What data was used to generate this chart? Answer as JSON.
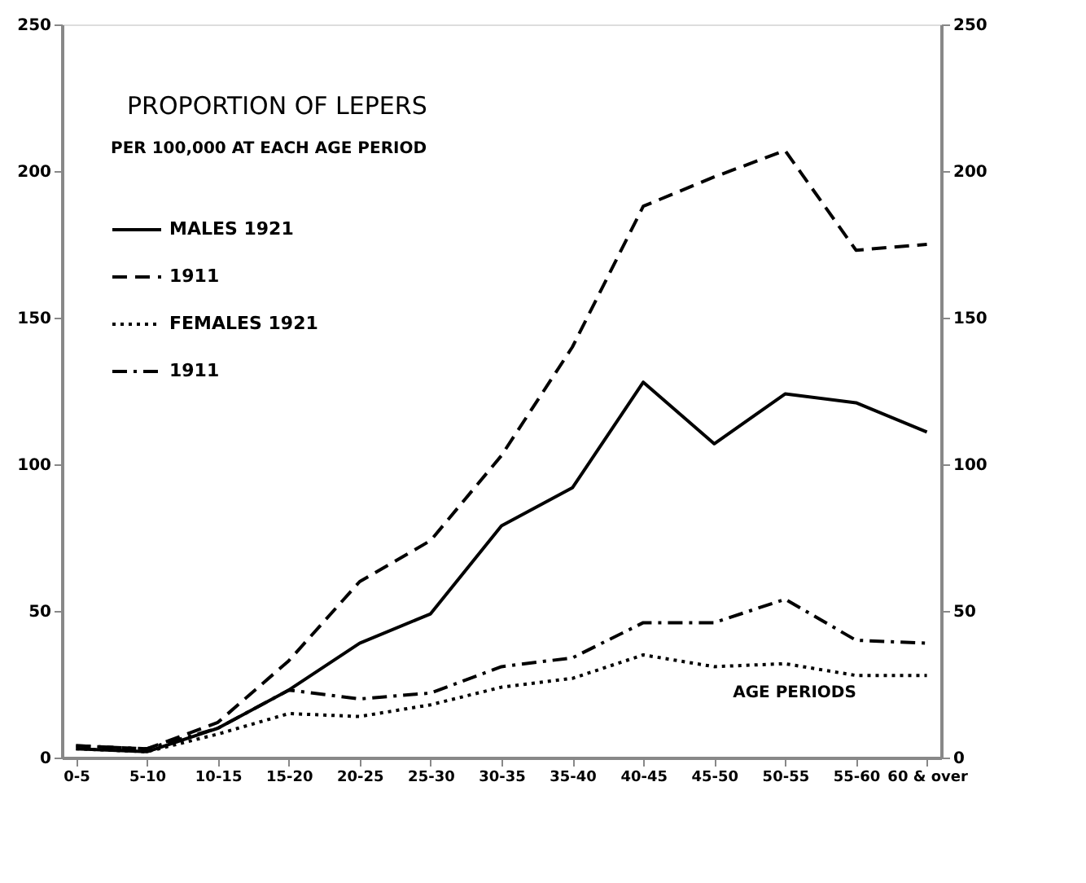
{
  "chart_data": {
    "type": "line",
    "title": "PROPORTION OF LEPERS",
    "subtitle": "PER 100,000 AT EACH AGE PERIOD",
    "categories": [
      "0-5",
      "5-10",
      "10-15",
      "15-20",
      "20-25",
      "25-30",
      "30-35",
      "35-40",
      "40-45",
      "45-50",
      "50-55",
      "55-60",
      "60 & over"
    ],
    "series": [
      {
        "name": "MALES 1921",
        "color": "#000000",
        "line_style": "solid",
        "values": [
          3,
          2,
          10,
          23,
          39,
          49,
          79,
          92,
          128,
          107,
          124,
          121,
          111
        ]
      },
      {
        "name": "1911",
        "color": "#000000",
        "line_style": "dashed",
        "values": [
          4,
          3,
          12,
          33,
          60,
          74,
          103,
          140,
          188,
          198,
          207,
          173,
          175
        ]
      },
      {
        "name": "FEMALES 1921",
        "color": "#000000",
        "line_style": "dotted",
        "values": [
          3,
          2,
          8,
          15,
          14,
          18,
          24,
          27,
          35,
          31,
          32,
          28,
          28
        ]
      },
      {
        "name": "1911",
        "color": "#000000",
        "line_style": "dashdot",
        "values": [
          4,
          3,
          10,
          23,
          20,
          22,
          31,
          34,
          46,
          46,
          54,
          40,
          39
        ]
      }
    ],
    "ylim": [
      0,
      250
    ],
    "yticks": [
      0,
      50,
      100,
      150,
      200,
      250
    ],
    "y2lim": [
      0,
      250
    ],
    "y2ticks": [
      0,
      50,
      100,
      150,
      200,
      250
    ],
    "annotations": [
      "AGE PERIODS"
    ],
    "legend": "top left",
    "grid": false,
    "marker": "none"
  }
}
